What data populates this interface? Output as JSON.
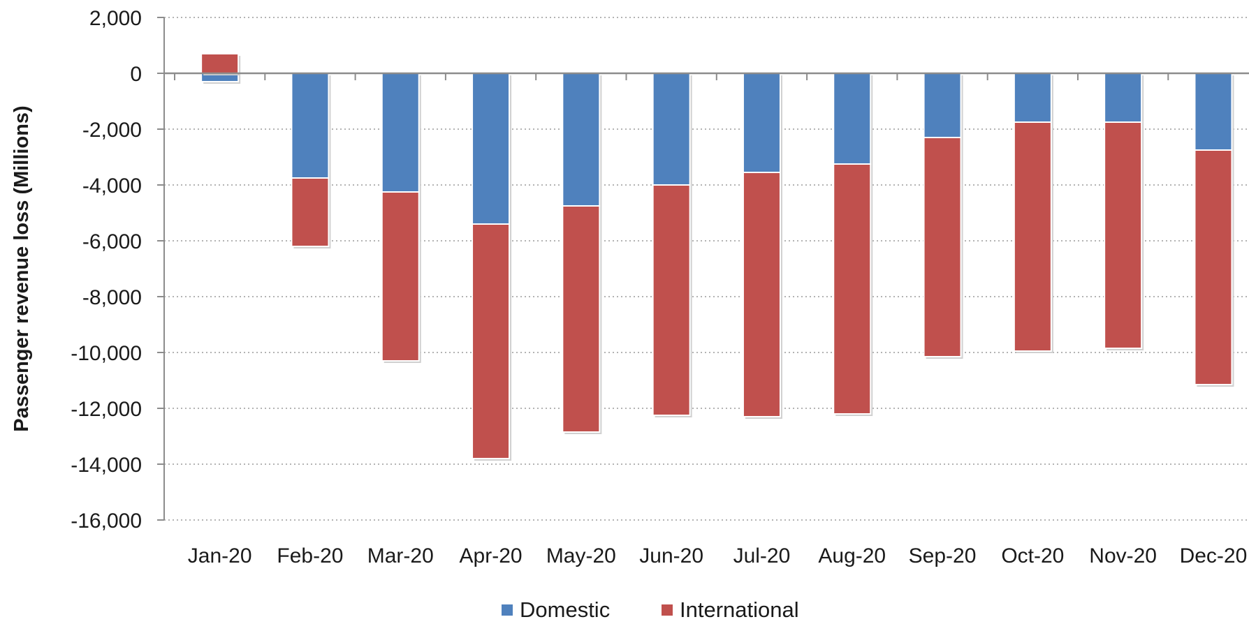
{
  "chart_data": {
    "type": "bar",
    "stacked": true,
    "title": "",
    "xlabel": "",
    "ylabel": "Passenger revenue loss (Millions)",
    "ylim": [
      -16000,
      2000
    ],
    "yticks": [
      2000,
      0,
      -2000,
      -4000,
      -6000,
      -8000,
      -10000,
      -12000,
      -14000,
      -16000
    ],
    "ytick_labels": [
      "2,000",
      "0",
      "-2,000",
      "-4,000",
      "-6,000",
      "-8,000",
      "-10,000",
      "-12,000",
      "-14,000",
      "-16,000"
    ],
    "grid": "horizontal dotted",
    "legend_position": "bottom",
    "categories": [
      "Jan-20",
      "Feb-20",
      "Mar-20",
      "Apr-20",
      "May-20",
      "Jun-20",
      "Jul-20",
      "Aug-20",
      "Sep-20",
      "Oct-20",
      "Nov-20",
      "Dec-20"
    ],
    "series": [
      {
        "name": "Domestic",
        "color": "#4f81bd",
        "values": [
          -300,
          -3750,
          -4250,
          -5400,
          -4750,
          -4000,
          -3550,
          -3250,
          -2300,
          -1750,
          -1750,
          -2750
        ]
      },
      {
        "name": "International",
        "color": "#c0504d",
        "values": [
          700,
          -2450,
          -6050,
          -8400,
          -8100,
          -8250,
          -8750,
          -8950,
          -7850,
          -8200,
          -8100,
          -8400
        ]
      }
    ]
  }
}
